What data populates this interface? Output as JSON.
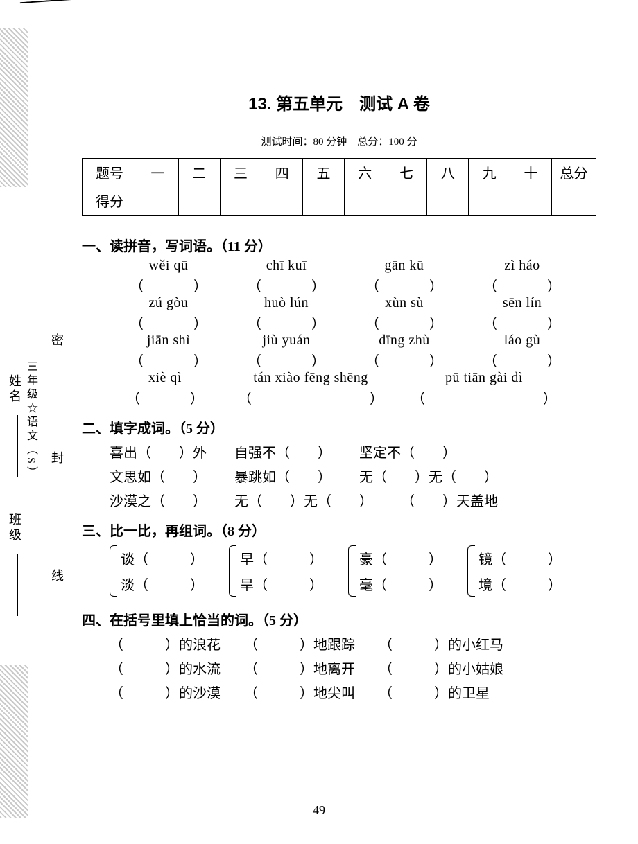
{
  "page": {
    "title": "13. 第五单元　测试 A 卷",
    "subtitle": "测试时间：80 分钟　总分：100 分",
    "page_number": "49"
  },
  "margin": {
    "seal_chars": [
      "密",
      "封",
      "线"
    ],
    "class_label": "班级",
    "name_label": "姓名",
    "book_label": "三年级☆语文（S）"
  },
  "score_table": {
    "row1_label": "题号",
    "row2_label": "得分",
    "cols": [
      "一",
      "二",
      "三",
      "四",
      "五",
      "六",
      "七",
      "八",
      "九",
      "十"
    ],
    "total_label": "总分"
  },
  "q1": {
    "head": "一、读拼音，写词语。（11 分）",
    "rows": [
      [
        "wěi qū",
        "chī kuī",
        "gān kū",
        "zì háo"
      ],
      [
        "zú gòu",
        "huò lún",
        "xùn sù",
        "sēn lín"
      ],
      [
        "jiān shì",
        "jiù yuán",
        "dīng zhù",
        "láo gù"
      ]
    ],
    "last_row": [
      "xiè qì",
      "tán xiào fēng shēng",
      "pū tiān gài dì"
    ]
  },
  "q2": {
    "head": "二、填字成词。（5 分）",
    "rows": [
      [
        "喜出（　　）外",
        "自强不（　　）",
        "坚定不（　　）"
      ],
      [
        "文思如（　　）",
        "暴跳如（　　）",
        "无（　　）无（　　）"
      ],
      [
        "沙漠之（　　）",
        "无（　　）无（　　）",
        "（　　）天盖地"
      ]
    ]
  },
  "q3": {
    "head": "三、比一比，再组词。（8 分）",
    "pairs": [
      [
        "谈（　　　）",
        "淡（　　　）"
      ],
      [
        "早（　　　）",
        "旱（　　　）"
      ],
      [
        "豪（　　　）",
        "毫（　　　）"
      ],
      [
        "镜（　　　）",
        "境（　　　）"
      ]
    ]
  },
  "q4": {
    "head": "四、在括号里填上恰当的词。（5 分）",
    "rows": [
      [
        "（　　　）的浪花",
        "（　　　）地跟踪",
        "（　　　）的小红马"
      ],
      [
        "（　　　）的水流",
        "（　　　）地离开",
        "（　　　）的小姑娘"
      ],
      [
        "（　　　）的沙漠",
        "（　　　）地尖叫",
        "（　　　）的卫星"
      ]
    ]
  }
}
